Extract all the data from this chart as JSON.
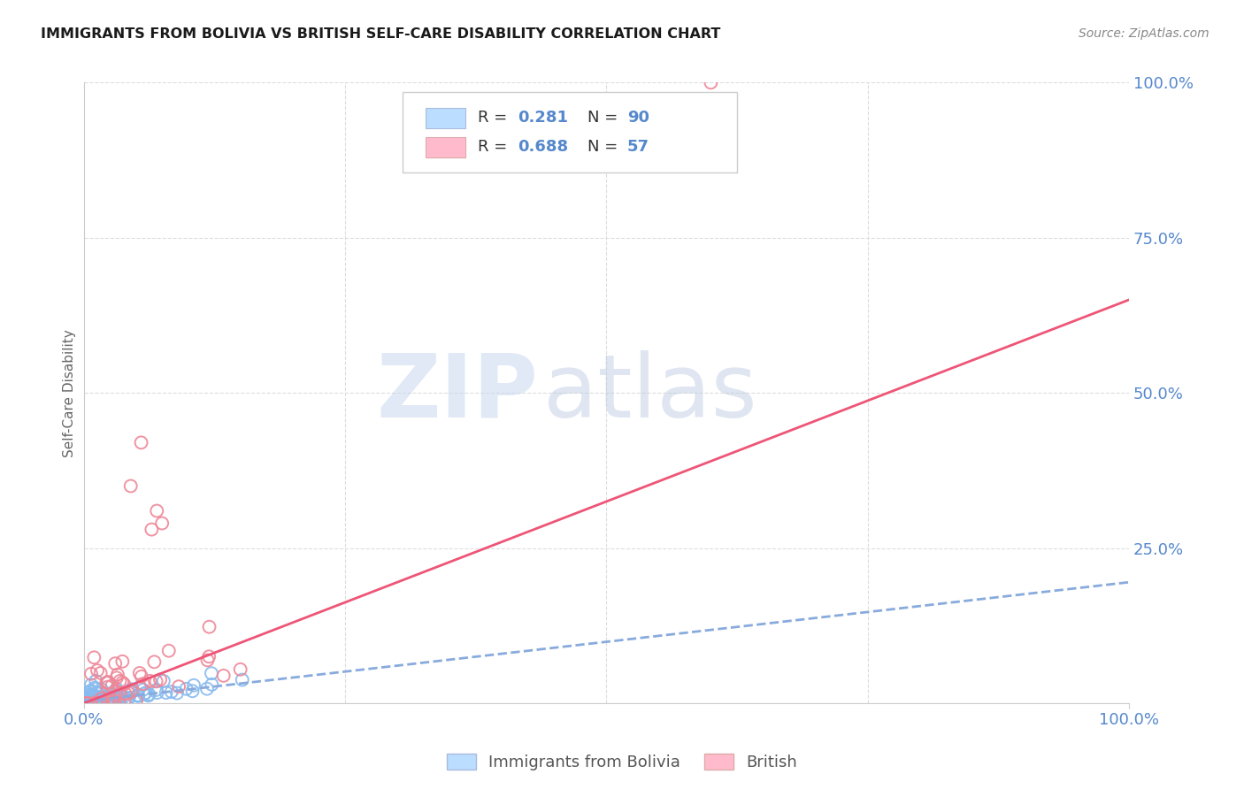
{
  "title": "IMMIGRANTS FROM BOLIVIA VS BRITISH SELF-CARE DISABILITY CORRELATION CHART",
  "source": "Source: ZipAtlas.com",
  "ylabel": "Self-Care Disability",
  "watermark_zip": "ZIP",
  "watermark_atlas": "atlas",
  "title_color": "#1a1a1a",
  "source_color": "#888888",
  "tick_color": "#5588cc",
  "grid_color": "#dddddd",
  "blue_dot_facecolor": "none",
  "blue_dot_edgecolor": "#88bbee",
  "blue_line_color": "#88aadd",
  "pink_dot_facecolor": "none",
  "pink_dot_edgecolor": "#ee8899",
  "pink_line_color": "#ee5577",
  "background_color": "#ffffff",
  "legend_blue_face": "#bbddff",
  "legend_pink_face": "#ffbbcc",
  "legend_R1": "R = ",
  "legend_R1_val": "0.281",
  "legend_N1": "N = ",
  "legend_N1_val": "90",
  "legend_R2": "R = ",
  "legend_R2_val": "0.688",
  "legend_N2": "N = ",
  "legend_N2_val": "57",
  "label_bolivia": "Immigrants from Bolivia",
  "label_british": "British",
  "xlim": [
    0,
    100
  ],
  "ylim": [
    0,
    100
  ],
  "xticks": [
    0,
    100
  ],
  "xtick_labels": [
    "0.0%",
    "100.0%"
  ],
  "yticks": [
    0,
    25,
    50,
    75,
    100
  ],
  "ytick_labels": [
    "",
    "25.0%",
    "50.0%",
    "75.0%",
    "100.0%"
  ],
  "blue_N": 90,
  "pink_N": 57,
  "blue_seed": 42,
  "pink_seed": 7,
  "blue_line_x0": 0,
  "blue_line_x1": 100,
  "blue_line_y0": 0.3,
  "blue_line_y1": 19.5,
  "pink_line_x0": 0,
  "pink_line_x1": 100,
  "pink_line_y0": 0.0,
  "pink_line_y1": 65.0,
  "outlier_pink_x": 60,
  "outlier_pink_y": 100
}
